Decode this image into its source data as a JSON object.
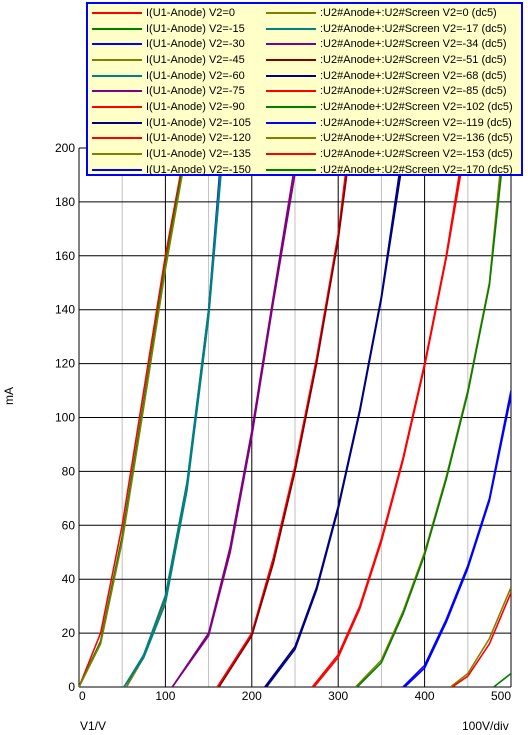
{
  "chart_data": {
    "type": "line",
    "xlabel": "V1/V",
    "ylabel": "mA",
    "x_div_label": "100V/div",
    "xlim": [
      0,
      500
    ],
    "ylim": [
      0,
      200
    ],
    "xticks": [
      0,
      100,
      200,
      300,
      400,
      500
    ],
    "yticks": [
      0,
      20,
      40,
      60,
      80,
      100,
      120,
      140,
      160,
      180,
      200
    ],
    "grid": true,
    "legend_position": "top-right",
    "series": [
      {
        "name": "I(U1-Anode) V2=0",
        "color": "#ff0000",
        "x": [
          0,
          25,
          50,
          75,
          100,
          123
        ],
        "y": [
          0,
          20,
          60,
          110,
          160,
          200
        ]
      },
      {
        "name": "I(U1-Anode) V2=-15",
        "color": "#008000",
        "x": [
          0,
          25,
          50,
          75,
          100,
          124
        ],
        "y": [
          0,
          17,
          56,
          106,
          157,
          200
        ]
      },
      {
        "name": "I(U1-Anode) V2=-30",
        "color": "#0000ff",
        "x": [
          55,
          75,
          100,
          125,
          150,
          165
        ],
        "y": [
          0,
          12,
          33,
          75,
          140,
          200
        ]
      },
      {
        "name": "I(U1-Anode) V2=-45",
        "color": "#808000",
        "x": [
          55,
          75,
          100,
          125,
          150,
          166
        ],
        "y": [
          0,
          11,
          32,
          74,
          138,
          200
        ]
      },
      {
        "name": "I(U1-Anode) V2=-60",
        "color": "#008080",
        "x": [
          52,
          75,
          100,
          125,
          150,
          166
        ],
        "y": [
          0,
          12,
          34,
          76,
          140,
          200
        ]
      },
      {
        "name": "I(U1-Anode) V2=-75",
        "color": "#800080",
        "x": [
          108,
          150,
          175,
          200,
          225,
          253
        ],
        "y": [
          0,
          20,
          52,
          95,
          145,
          200
        ]
      },
      {
        "name": "I(U1-Anode) V2=-90",
        "color": "#ff0000",
        "x": [
          160,
          200,
          225,
          250,
          275,
          300,
          312
        ],
        "y": [
          0,
          20,
          48,
          82,
          122,
          168,
          200
        ]
      },
      {
        "name": "I(U1-Anode) V2=-105",
        "color": "#000080",
        "x": [
          215,
          250,
          275,
          300,
          325,
          350,
          375
        ],
        "y": [
          0,
          15,
          37,
          67,
          103,
          145,
          200
        ]
      },
      {
        "name": "I(U1-Anode) V2=-120",
        "color": "#ff0000",
        "x": [
          270,
          300,
          325,
          350,
          375,
          400,
          425,
          445
        ],
        "y": [
          0,
          12,
          30,
          55,
          85,
          120,
          160,
          200
        ]
      },
      {
        "name": "I(U1-Anode) V2=-135",
        "color": "#808000",
        "x": [
          320,
          350,
          375,
          400,
          425,
          450,
          475,
          490
        ],
        "y": [
          0,
          10,
          28,
          50,
          78,
          110,
          150,
          200
        ]
      },
      {
        "name": "I(U1-Anode) V2=-150",
        "color": "#0000ff",
        "x": [
          375,
          400,
          425,
          450,
          475,
          500
        ],
        "y": [
          0,
          8,
          25,
          45,
          70,
          110
        ]
      },
      {
        "name": ":U2#Anode+:U2#Screen V2=0 (dc5)",
        "color": "#808000",
        "x": [
          0,
          25,
          50,
          75,
          100,
          125
        ],
        "y": [
          0,
          16,
          54,
          104,
          155,
          200
        ]
      },
      {
        "name": ":U2#Anode+:U2#Screen V2=-17 (dc5)",
        "color": "#008080",
        "x": [
          52,
          75,
          100,
          125,
          150,
          167
        ],
        "y": [
          0,
          11,
          31,
          73,
          137,
          200
        ]
      },
      {
        "name": ":U2#Anode+:U2#Screen V2=-34 (dc5)",
        "color": "#800080",
        "x": [
          108,
          150,
          175,
          200,
          225,
          255
        ],
        "y": [
          0,
          19,
          50,
          93,
          143,
          200
        ]
      },
      {
        "name": ":U2#Anode+:U2#Screen V2=-51 (dc5)",
        "color": "#800000",
        "x": [
          162,
          200,
          225,
          250,
          275,
          300,
          314
        ],
        "y": [
          0,
          19,
          46,
          80,
          120,
          166,
          200
        ]
      },
      {
        "name": ":U2#Anode+:U2#Screen V2=-68 (dc5)",
        "color": "#000080",
        "x": [
          217,
          250,
          275,
          300,
          325,
          350,
          377
        ],
        "y": [
          0,
          14,
          36,
          66,
          102,
          144,
          200
        ]
      },
      {
        "name": ":U2#Anode+:U2#Screen V2=-85 (dc5)",
        "color": "#ff0000",
        "x": [
          272,
          300,
          325,
          350,
          375,
          400,
          425,
          447
        ],
        "y": [
          0,
          11,
          29,
          54,
          84,
          119,
          159,
          200
        ]
      },
      {
        "name": ":U2#Anode+:U2#Screen V2=-102 (dc5)",
        "color": "#008000",
        "x": [
          322,
          350,
          375,
          400,
          425,
          450,
          475,
          492
        ],
        "y": [
          0,
          9,
          27,
          49,
          77,
          109,
          149,
          200
        ]
      },
      {
        "name": ":U2#Anode+:U2#Screen V2=-119 (dc5)",
        "color": "#0000ff",
        "x": [
          377,
          400,
          425,
          450,
          475,
          500
        ],
        "y": [
          0,
          7,
          24,
          44,
          69,
          108
        ]
      },
      {
        "name": ":U2#Anode+:U2#Screen V2=-136 (dc5)",
        "color": "#808000",
        "x": [
          430,
          450,
          475,
          500
        ],
        "y": [
          0,
          5,
          18,
          37
        ]
      },
      {
        "name": ":U2#Anode+:U2#Screen V2=-153 (dc5)",
        "color": "#ff0000",
        "x": [
          432,
          450,
          475,
          500
        ],
        "y": [
          0,
          4,
          16,
          35
        ]
      },
      {
        "name": ":U2#Anode+:U2#Screen V2=-170 (dc5)",
        "color": "#008000",
        "x": [
          480,
          500
        ],
        "y": [
          0,
          5
        ]
      }
    ]
  }
}
